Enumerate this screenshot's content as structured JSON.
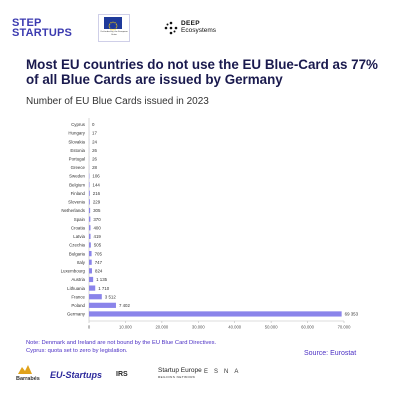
{
  "logos": {
    "step_startups": [
      "STEP",
      "STARTUPS"
    ],
    "eu_caption": "Co-funded by the European Union",
    "deep_ecosystems": [
      "DEEP",
      "Ecosystems"
    ],
    "partners": [
      "Barrabés",
      "EU-Startups",
      "IRS",
      "Startup Europe",
      "ESNA"
    ],
    "partners_sub": "REGIONS NETWORK"
  },
  "headline": "Most EU countries do not use the EU Blue-Card as 77% of all Blue Cards are issued by Germany",
  "subtitle": "Number of EU Blue Cards issued in 2023",
  "note": "Note: Denmark and Ireland are not bound by the EU Blue Card Directives. Cyprus: quota set to zero by legislation.",
  "source": "Source: Eurostat",
  "colors": {
    "bar": "#8a84ea",
    "accent": "#4b2fc4",
    "title": "#1a1a4e"
  },
  "chart_data": {
    "type": "bar",
    "orientation": "horizontal",
    "categories": [
      "Cyprus",
      "Hungary",
      "Slovakia",
      "Estonia",
      "Portugal",
      "Greece",
      "Sweden",
      "Belgium",
      "Finland",
      "Slovenia",
      "Netherlands",
      "Spain",
      "Croatia",
      "Latvia",
      "Czechia",
      "Bulgaria",
      "Italy",
      "Luxembourg",
      "Austria",
      "Lithuania",
      "France",
      "Poland",
      "Germany"
    ],
    "values": [
      0,
      17,
      24,
      26,
      26,
      28,
      106,
      144,
      216,
      229,
      305,
      370,
      400,
      419,
      505,
      705,
      747,
      824,
      1135,
      1710,
      3512,
      7402,
      69353
    ],
    "value_labels": [
      "0",
      "17",
      "24",
      "26",
      "26",
      "28",
      "106",
      "144",
      "216",
      "229",
      "305",
      "370",
      "400",
      "419",
      "505",
      "705",
      "747",
      "824",
      "1 135",
      "1 710",
      "3 512",
      "7 402",
      "69 353"
    ],
    "xlim": [
      0,
      70000
    ],
    "xticks": [
      0,
      10000,
      20000,
      30000,
      40000,
      50000,
      60000,
      70000
    ],
    "xtick_labels": [
      "0",
      "10.000",
      "20.000",
      "30.000",
      "40.000",
      "50.000",
      "60.000",
      "70.000"
    ],
    "grid": false,
    "legend": "none"
  }
}
